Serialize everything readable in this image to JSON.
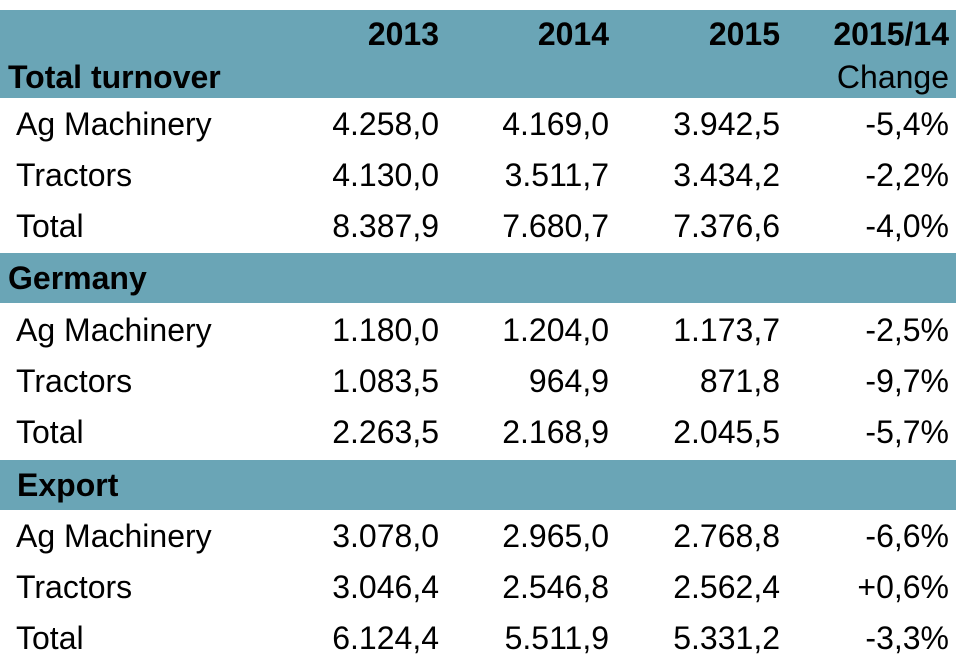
{
  "colors": {
    "header_band": "#6AA5B6",
    "background": "#FFFFFF",
    "text": "#000000"
  },
  "chart_data": {
    "type": "table",
    "columns": [
      "",
      "2013",
      "2014",
      "2015",
      "2015/14"
    ],
    "change_label": "Change",
    "sections": [
      {
        "title": "Total turnover",
        "rows": [
          {
            "label": "Ag Machinery",
            "values": [
              "4.258,0",
              "4.169,0",
              "3.942,5"
            ],
            "change": "-5,4%"
          },
          {
            "label": "Tractors",
            "values": [
              "4.130,0",
              "3.511,7",
              "3.434,2"
            ],
            "change": "-2,2%"
          },
          {
            "label": "Total",
            "values": [
              "8.387,9",
              "7.680,7",
              "7.376,6"
            ],
            "change": "-4,0%"
          }
        ]
      },
      {
        "title": "Germany",
        "rows": [
          {
            "label": "Ag Machinery",
            "values": [
              "1.180,0",
              "1.204,0",
              "1.173,7"
            ],
            "change": "-2,5%"
          },
          {
            "label": "Tractors",
            "values": [
              "1.083,5",
              "964,9",
              "871,8"
            ],
            "change": "-9,7%"
          },
          {
            "label": "Total",
            "values": [
              "2.263,5",
              "2.168,9",
              "2.045,5"
            ],
            "change": "-5,7%"
          }
        ]
      },
      {
        "title": "Export",
        "rows": [
          {
            "label": "Ag Machinery",
            "values": [
              "3.078,0",
              "2.965,0",
              "2.768,8"
            ],
            "change": "-6,6%"
          },
          {
            "label": "Tractors",
            "values": [
              "3.046,4",
              "2.546,8",
              "2.562,4"
            ],
            "change": "+0,6%"
          },
          {
            "label": "Total",
            "values": [
              "6.124,4",
              "5.511,9",
              "5.331,2"
            ],
            "change": "-3,3%"
          }
        ]
      }
    ]
  }
}
